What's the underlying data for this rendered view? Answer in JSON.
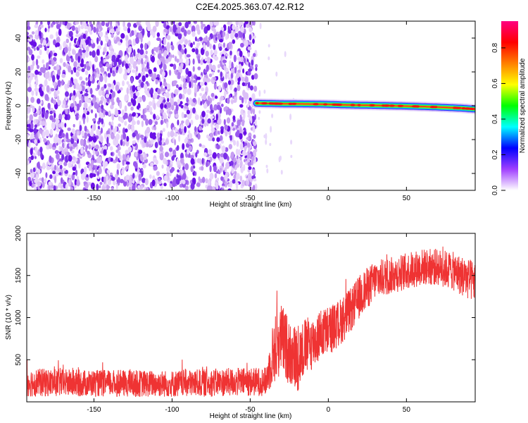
{
  "title": "C2E4.2025.363.07.42.R12",
  "chart_data": [
    {
      "type": "heatmap",
      "name": "spectrogram",
      "xlabel": "Height of straight line (km)",
      "ylabel": "Frequency (Hz)",
      "xlim": [
        -193,
        94
      ],
      "ylim": [
        -50,
        50
      ],
      "xticks": [
        -150,
        -100,
        -50,
        0,
        50
      ],
      "yticks": [
        -40,
        -20,
        0,
        20,
        40
      ],
      "noise_region_x": [
        -193,
        -46
      ],
      "signal_start_x": -46,
      "signal_frequency_hz": [
        1.5,
        1.2,
        1.0,
        0.8,
        0.5,
        0.2,
        -0.2,
        -0.8,
        -1.4,
        -2.0
      ],
      "signal_frequency_x": [
        -46,
        -30,
        -10,
        0,
        10,
        30,
        50,
        70,
        85,
        94
      ],
      "colorbar": {
        "label": "Normalized spectral amplitude",
        "ticks": [
          "0.0",
          "0.2",
          "0.4",
          "0.6",
          "0.8"
        ],
        "range": [
          0.0,
          0.95
        ],
        "colors": [
          "#ffffff",
          "#a040ff",
          "#0000ff",
          "#00ffff",
          "#00ff00",
          "#ffff00",
          "#ff8000",
          "#ff0000",
          "#ff0080"
        ]
      }
    },
    {
      "type": "line",
      "name": "snr",
      "xlabel": "Height of straight line (km)",
      "ylabel": "SNR (10 * v/v)",
      "xlim": [
        -193,
        94
      ],
      "ylim": [
        0,
        2000
      ],
      "xticks": [
        -150,
        -100,
        -50,
        0,
        50
      ],
      "yticks": [
        500,
        1000,
        1500,
        2000
      ],
      "line_color": "#ef3333",
      "profile_x": [
        -193,
        -150,
        -100,
        -60,
        -40,
        -35,
        -30,
        -25,
        -20,
        -15,
        -10,
        -5,
        0,
        5,
        10,
        15,
        20,
        25,
        30,
        40,
        50,
        60,
        70,
        80,
        90,
        94
      ],
      "profile_mean": [
        230,
        220,
        215,
        235,
        240,
        600,
        750,
        600,
        500,
        650,
        700,
        800,
        850,
        900,
        1000,
        1100,
        1250,
        1350,
        1450,
        1500,
        1550,
        1600,
        1600,
        1550,
        1450,
        1420
      ],
      "profile_spread": [
        170,
        160,
        160,
        170,
        170,
        400,
        420,
        400,
        400,
        350,
        320,
        300,
        300,
        280,
        280,
        260,
        260,
        250,
        230,
        220,
        220,
        220,
        220,
        230,
        250,
        250
      ]
    }
  ]
}
